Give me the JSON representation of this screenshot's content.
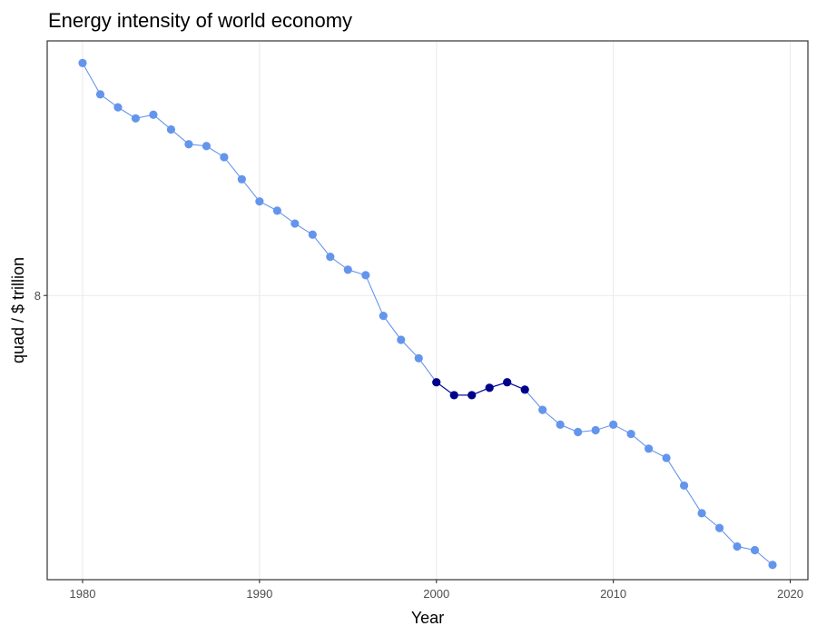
{
  "chart_data": {
    "type": "line",
    "title": "Energy intensity of world economy",
    "xlabel": "Year",
    "ylabel": "quad / $ trillion",
    "xlim": [
      1978,
      2021
    ],
    "ylim": [
      6.46,
      9.38
    ],
    "x_ticks": [
      1980,
      1990,
      2000,
      2010,
      2020
    ],
    "y_ticks": [
      8
    ],
    "grid": true,
    "legend": "none",
    "series": [
      {
        "color": "#6495ED",
        "x": [
          1980,
          1981,
          1982,
          1983,
          1984,
          1985,
          1986,
          1987,
          1988,
          1989,
          1990,
          1991,
          1992,
          1993,
          1994,
          1995,
          1996,
          1997,
          1998,
          1999,
          2000,
          2001,
          2002,
          2003,
          2004,
          2005,
          2006,
          2007,
          2008,
          2009,
          2010,
          2011,
          2012,
          2013,
          2014,
          2015,
          2016,
          2017,
          2018,
          2019
        ],
        "values": [
          9.26,
          9.09,
          9.02,
          8.96,
          8.98,
          8.9,
          8.82,
          8.81,
          8.75,
          8.63,
          8.51,
          8.46,
          8.39,
          8.33,
          8.21,
          8.14,
          8.11,
          7.89,
          7.76,
          7.66,
          7.53,
          7.46,
          7.46,
          7.5,
          7.53,
          7.49,
          7.38,
          7.3,
          7.26,
          7.27,
          7.3,
          7.25,
          7.17,
          7.12,
          6.97,
          6.82,
          6.74,
          6.64,
          6.62,
          6.54
        ]
      },
      {
        "color": "#00008B",
        "x": [
          2000,
          2001,
          2002,
          2003,
          2004,
          2005
        ],
        "values": [
          7.53,
          7.46,
          7.46,
          7.5,
          7.53,
          7.49
        ]
      }
    ]
  }
}
